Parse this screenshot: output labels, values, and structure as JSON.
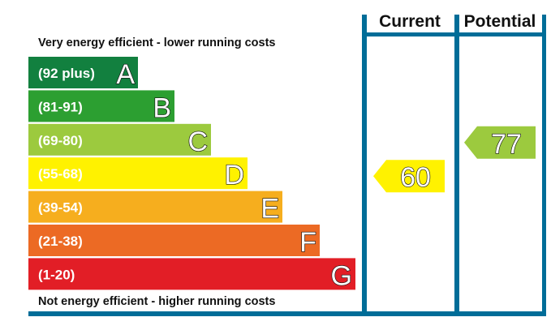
{
  "chart_data": {
    "type": "bar",
    "headers": {
      "current": "Current",
      "potential": "Potential"
    },
    "top_caption": "Very energy efficient - lower running costs",
    "bottom_caption": "Not energy efficient - higher running costs",
    "bands": [
      {
        "letter": "A",
        "range": "(92 plus)",
        "min": 92,
        "max": 100,
        "color": "#12803f"
      },
      {
        "letter": "B",
        "range": "(81-91)",
        "min": 81,
        "max": 91,
        "color": "#2c9f31"
      },
      {
        "letter": "C",
        "range": "(69-80)",
        "min": 69,
        "max": 80,
        "color": "#9cca3e"
      },
      {
        "letter": "D",
        "range": "(55-68)",
        "min": 55,
        "max": 68,
        "color": "#fff200"
      },
      {
        "letter": "E",
        "range": "(39-54)",
        "min": 39,
        "max": 54,
        "color": "#f6ae1e"
      },
      {
        "letter": "F",
        "range": "(21-38)",
        "min": 21,
        "max": 38,
        "color": "#ec6a24"
      },
      {
        "letter": "G",
        "range": "(1-20)",
        "min": 1,
        "max": 20,
        "color": "#e21e26"
      }
    ],
    "current": {
      "value": 60,
      "band": "D",
      "color": "#fff200"
    },
    "potential": {
      "value": 77,
      "band": "C",
      "color": "#9cca3e"
    },
    "frame_color": "#006d98"
  }
}
